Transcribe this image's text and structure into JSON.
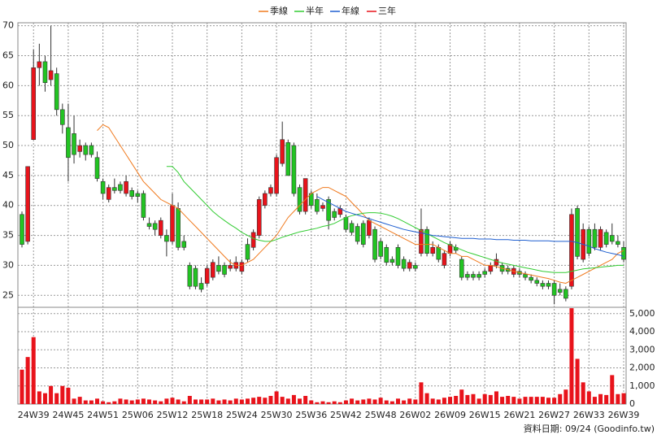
{
  "chart_data": {
    "type": "candlestick",
    "categories": [
      null,
      null,
      "24W39",
      null,
      null,
      null,
      null,
      null,
      "24W45",
      null,
      null,
      null,
      null,
      null,
      "24W51",
      null,
      null,
      null,
      null,
      null,
      "25W06",
      null,
      null,
      null,
      null,
      null,
      "25W12",
      null,
      null,
      null,
      null,
      null,
      "25W18",
      null,
      null,
      null,
      null,
      null,
      "25W24",
      null,
      null,
      null,
      null,
      null,
      "25W30",
      null,
      null,
      null,
      null,
      null,
      "25W36",
      null,
      null,
      null,
      null,
      null,
      "25W42",
      null,
      null,
      null,
      null,
      null,
      "25W48",
      null,
      null,
      null,
      null,
      null,
      "26W02",
      null,
      null,
      null,
      null,
      null,
      "26W09",
      null,
      null,
      null,
      null,
      null,
      "26W15",
      null,
      null,
      null,
      null,
      null,
      "26W21",
      null,
      null,
      null,
      null,
      null,
      "26W27",
      null,
      null,
      null,
      null,
      null,
      "26W33",
      null,
      null,
      null,
      null,
      null,
      "26W39"
    ],
    "open": [
      38.5,
      34,
      51,
      63,
      64,
      61,
      62,
      56,
      53,
      52,
      49,
      50,
      50,
      48,
      44,
      41,
      43,
      43.5,
      42,
      42.5,
      42,
      42,
      37,
      37,
      35,
      35,
      34,
      39.5,
      34,
      30,
      29.5,
      27,
      27,
      28,
      30,
      30,
      29.5,
      29.5,
      29,
      33.5,
      33,
      35,
      40,
      42,
      42,
      47,
      50.5,
      50,
      43,
      39,
      42,
      41,
      39.5,
      41,
      39,
      38.5,
      38,
      37,
      36.5,
      37,
      35,
      36,
      34,
      33,
      31,
      33,
      31,
      29.5,
      30,
      32,
      36,
      32,
      33,
      30,
      32,
      33,
      31,
      28.5,
      28.5,
      28.5,
      29,
      29,
      30,
      30,
      29.5,
      28.5,
      29,
      28.5,
      28,
      27.5,
      27,
      27,
      27,
      26,
      26,
      26.5,
      39.5,
      31,
      36,
      36,
      33,
      35.5,
      35,
      34,
      33
    ],
    "high": [
      39,
      46.5,
      66,
      67,
      65,
      70,
      63,
      57,
      57,
      55,
      51,
      50.5,
      50.5,
      49,
      44.5,
      43.5,
      44.5,
      44,
      45,
      43,
      42.5,
      42.5,
      38,
      37.5,
      38,
      36,
      42,
      40.5,
      35,
      30.5,
      30,
      28,
      30,
      31,
      31.5,
      30.5,
      31,
      31.5,
      31,
      34.5,
      36,
      41.5,
      42.5,
      43.5,
      48.5,
      54,
      51,
      50.5,
      43.5,
      44.5,
      42.5,
      42,
      40.5,
      41.5,
      39.5,
      40,
      38.5,
      37.5,
      37,
      37.5,
      38,
      36.5,
      34.5,
      33.5,
      31.5,
      33.5,
      31.5,
      31,
      30.5,
      39.5,
      36.5,
      34,
      33.5,
      32.5,
      34,
      33.5,
      31.5,
      29,
      29,
      29,
      29.5,
      30.5,
      32,
      30.5,
      30,
      30,
      29.5,
      29,
      28.5,
      28,
      27.5,
      27.5,
      27.5,
      27,
      26.5,
      39.5,
      40,
      37,
      36.5,
      37,
      36.5,
      36,
      37,
      35,
      34
    ],
    "low": [
      33,
      33.5,
      51,
      60,
      59,
      60,
      55,
      52,
      44,
      47,
      48,
      47.5,
      48,
      44,
      41,
      40.5,
      42,
      42,
      41.5,
      41,
      40.5,
      37.5,
      36,
      35,
      34.5,
      31.5,
      33.5,
      32.5,
      32.5,
      26,
      26,
      25.5,
      26.5,
      27.5,
      28.5,
      28,
      29,
      29,
      28.5,
      30.5,
      32.5,
      34.5,
      39.5,
      41.5,
      41.5,
      46.5,
      45,
      41.5,
      38.5,
      38.5,
      39.5,
      38.5,
      39,
      36,
      37.5,
      38,
      35.5,
      35,
      33.5,
      33,
      34.5,
      30.5,
      31,
      30,
      30,
      29.5,
      29,
      29,
      29,
      31.5,
      31.5,
      31.5,
      30.5,
      29.5,
      31.5,
      32,
      27.5,
      27.5,
      27.5,
      27.5,
      28,
      28.5,
      29.5,
      28.5,
      28.5,
      28,
      28,
      27.5,
      27,
      26.5,
      26,
      26,
      23.5,
      25,
      24,
      26,
      31,
      30.5,
      31.5,
      32.5,
      32.5,
      33,
      33.5,
      33,
      30.5
    ],
    "close": [
      33.5,
      46.5,
      63,
      64,
      60.5,
      62.5,
      56,
      53.5,
      48,
      48.5,
      50,
      48.5,
      48.5,
      44.5,
      42,
      43,
      42.5,
      42.5,
      44,
      41.5,
      41.5,
      38,
      36.5,
      36,
      37.5,
      34,
      40,
      33,
      33,
      26.5,
      26.5,
      26,
      29.5,
      30.5,
      29,
      28.5,
      30,
      30.5,
      30.5,
      31,
      35.5,
      41,
      42,
      43,
      48,
      51,
      45,
      42,
      39,
      44.5,
      40,
      39,
      40,
      37.5,
      38,
      39.5,
      36,
      35.5,
      34,
      33.5,
      37.5,
      31,
      31.5,
      30.5,
      30.5,
      30,
      29.5,
      30.5,
      29.5,
      36,
      32,
      33,
      31,
      32,
      33.5,
      32.5,
      28,
      28,
      28,
      28,
      28.5,
      30,
      31,
      29,
      29,
      29.5,
      28.5,
      28,
      27.5,
      27,
      26.5,
      26.5,
      25,
      25.5,
      24.5,
      38.5,
      31.5,
      36,
      32,
      33,
      36,
      33.5,
      34,
      33.5,
      31
    ],
    "volume": [
      1900,
      2600,
      3700,
      700,
      600,
      1000,
      600,
      1000,
      900,
      300,
      400,
      200,
      200,
      300,
      150,
      100,
      150,
      300,
      250,
      200,
      250,
      300,
      250,
      200,
      150,
      300,
      350,
      250,
      150,
      450,
      250,
      250,
      250,
      300,
      200,
      250,
      200,
      300,
      250,
      300,
      350,
      400,
      350,
      450,
      700,
      400,
      300,
      500,
      300,
      450,
      200,
      100,
      150,
      100,
      150,
      100,
      200,
      300,
      200,
      250,
      300,
      250,
      350,
      200,
      150,
      300,
      200,
      300,
      250,
      1200,
      600,
      300,
      250,
      350,
      400,
      450,
      800,
      500,
      550,
      300,
      550,
      500,
      700,
      400,
      450,
      400,
      300,
      400,
      400,
      400,
      400,
      350,
      350,
      550,
      800,
      5300,
      2500,
      1200,
      700,
      400,
      550,
      500,
      1600,
      550,
      600
    ],
    "up_color": "#e8131b",
    "down_color": "#22c422",
    "volume_color": "#e8131b",
    "series": [
      {
        "name": "季線",
        "color": "#f07a1e",
        "values": [
          null,
          null,
          null,
          null,
          null,
          null,
          null,
          null,
          null,
          null,
          null,
          null,
          null,
          52.5,
          53.5,
          53,
          51.5,
          50,
          48.5,
          47,
          45.5,
          44,
          43,
          42,
          41,
          40.5,
          40,
          39.5,
          38.5,
          37.5,
          36.5,
          35.5,
          34.5,
          33.5,
          32.5,
          31.5,
          30.5,
          30,
          30,
          30.5,
          31,
          32,
          33,
          34,
          35,
          36.5,
          38,
          39,
          40,
          41,
          42,
          42.5,
          43,
          43,
          42.5,
          42,
          41.5,
          40.5,
          39.5,
          38.5,
          37.5,
          37,
          36.5,
          36,
          35.5,
          35,
          34.5,
          34,
          33.5,
          33.5,
          33.5,
          33.5,
          33,
          32.5,
          32,
          32,
          31.5,
          31.5,
          31,
          30.5,
          30,
          30,
          29.8,
          29.5,
          29.3,
          29,
          28.8,
          28.6,
          28.4,
          28.2,
          28,
          27.8,
          27.5,
          27.2,
          27,
          27.5,
          28,
          28.5,
          29,
          29.5,
          30,
          30.5,
          31,
          32,
          32.5
        ]
      },
      {
        "name": "半年",
        "color": "#33cc33",
        "values": [
          null,
          null,
          null,
          null,
          null,
          null,
          null,
          null,
          null,
          null,
          null,
          null,
          null,
          null,
          null,
          null,
          null,
          null,
          null,
          null,
          null,
          null,
          null,
          null,
          null,
          46.5,
          46.5,
          45.5,
          44,
          43,
          42,
          41,
          40,
          39,
          38.2,
          37.5,
          36.8,
          36.2,
          35.5,
          35,
          34.5,
          34.2,
          34,
          34,
          34.3,
          34.7,
          35,
          35.3,
          35.6,
          35.8,
          36,
          36.2,
          36.5,
          36.7,
          37,
          37.5,
          38,
          38.3,
          38.5,
          38.7,
          38.8,
          38.8,
          38.7,
          38.5,
          38.2,
          37.8,
          37.3,
          36.8,
          36.3,
          35.8,
          35.3,
          34.8,
          34.3,
          33.8,
          33.4,
          33,
          32.6,
          32.2,
          31.9,
          31.6,
          31.3,
          31,
          30.7,
          30.4,
          30.2,
          30,
          29.8,
          29.6,
          29.4,
          29.2,
          29,
          28.9,
          28.8,
          28.8,
          28.8,
          29,
          29.2,
          29.4,
          29.5,
          29.6,
          29.7,
          29.8,
          29.9,
          30,
          30
        ]
      },
      {
        "name": "年線",
        "color": "#1f5fd0",
        "values": [
          null,
          null,
          null,
          null,
          null,
          null,
          null,
          null,
          null,
          null,
          null,
          null,
          null,
          null,
          null,
          null,
          null,
          null,
          null,
          null,
          null,
          null,
          null,
          null,
          null,
          null,
          null,
          null,
          null,
          null,
          null,
          null,
          null,
          null,
          null,
          null,
          null,
          null,
          null,
          null,
          null,
          null,
          null,
          null,
          null,
          null,
          null,
          null,
          null,
          null,
          null,
          41.5,
          41,
          40.5,
          40,
          39.5,
          39,
          38.7,
          38.4,
          38.1,
          37.8,
          37.5,
          37.2,
          36.9,
          36.6,
          36.3,
          36,
          35.8,
          35.6,
          35.4,
          35.2,
          35,
          34.9,
          34.8,
          34.7,
          34.6,
          34.5,
          34.5,
          34.5,
          34.4,
          34.4,
          34.4,
          34.3,
          34.3,
          34.3,
          34.2,
          34.2,
          34.2,
          34.1,
          34.1,
          34.1,
          34.1,
          34,
          34,
          34,
          34,
          33.8,
          33.5,
          33.2,
          32.8,
          32.5,
          32.2,
          32,
          31.8,
          31.5
        ]
      },
      {
        "name": "三年",
        "color": "#e8131b",
        "values": [
          null,
          null,
          null,
          null,
          null,
          null,
          null,
          null,
          null,
          null,
          null,
          null,
          null,
          null,
          null,
          null,
          null,
          null,
          null,
          null,
          null,
          null,
          null,
          null,
          null,
          null,
          null,
          null,
          null,
          null,
          null,
          null,
          null,
          null,
          null,
          null,
          null,
          null,
          null,
          null,
          null,
          null,
          null,
          null,
          null,
          null,
          null,
          null,
          null,
          null,
          null,
          null,
          null,
          null,
          null,
          null,
          null,
          null,
          null,
          null,
          null,
          null,
          null,
          null,
          null,
          null,
          null,
          null,
          null,
          null,
          null,
          null,
          null,
          null,
          null,
          null,
          null,
          null,
          null,
          null,
          null,
          null,
          null,
          null,
          null,
          null,
          null,
          null,
          null,
          null,
          null,
          null,
          null,
          null,
          null,
          null,
          null,
          null,
          null,
          null,
          null,
          null,
          null,
          null,
          null
        ]
      }
    ],
    "ylim": [
      23,
      70.5
    ],
    "yticks": [
      25,
      30,
      35,
      40,
      45,
      50,
      55,
      60,
      65,
      70
    ],
    "y2lim": [
      0,
      5350
    ],
    "y2ticks": [
      0,
      {
        "value": 1000,
        "label": "1,000"
      },
      {
        "value": 2000,
        "label": "2,000"
      },
      {
        "value": 3000,
        "label": "3,000"
      },
      {
        "value": 4000,
        "label": "4,000"
      },
      {
        "value": 5000,
        "label": "5,000"
      }
    ],
    "grid": true,
    "source": "資料日期: 09/24 (Goodinfo.tw)"
  }
}
